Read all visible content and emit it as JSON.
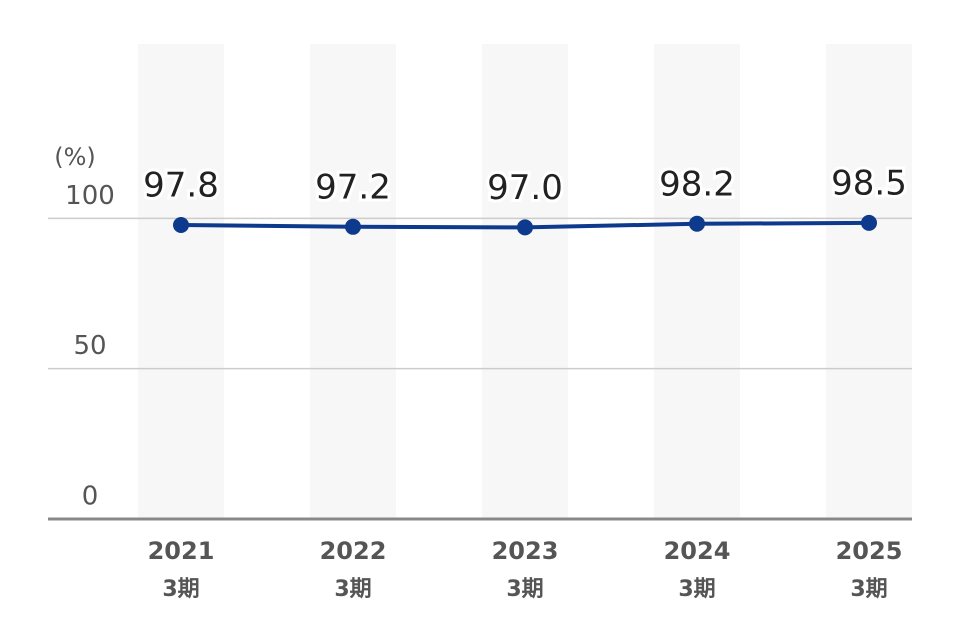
{
  "chart_data": {
    "type": "line",
    "y_label": "(%)",
    "categories": [
      "2021",
      "2022",
      "2023",
      "2024",
      "2025"
    ],
    "period_labels": [
      "3期",
      "3期",
      "3期",
      "3期",
      "3期"
    ],
    "values": [
      97.8,
      97.2,
      97.0,
      98.2,
      98.5
    ],
    "value_labels": [
      "97.8",
      "97.2",
      "97.0",
      "98.2",
      "98.5"
    ],
    "color": "#0d3a8c",
    "ylim": [
      0,
      158
    ],
    "yticks": [
      0,
      50,
      100
    ],
    "grid": true
  }
}
